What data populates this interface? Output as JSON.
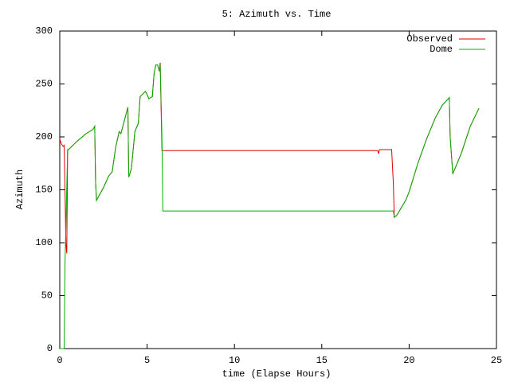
{
  "chart_data": {
    "type": "line",
    "title": "5: Azimuth vs. Time",
    "x_label": "time (Elapse Hours)",
    "y_label": "Azimuth",
    "xlim": [
      0,
      25
    ],
    "ylim": [
      0,
      300
    ],
    "xticks": [
      0,
      5,
      10,
      15,
      20,
      25
    ],
    "yticks": [
      0,
      50,
      100,
      150,
      200,
      250,
      300
    ],
    "legend": "top-right",
    "series": [
      {
        "name": "Observed",
        "color": "#e00000",
        "x": [
          0,
          0.1,
          0.2,
          0.25,
          0.3,
          0.35,
          0.4,
          0.45,
          0.5,
          1.0,
          1.5,
          1.9,
          2.0,
          2.05,
          2.1,
          2.5,
          2.8,
          3.0,
          3.2,
          3.4,
          3.5,
          3.9,
          3.95,
          4.1,
          4.3,
          4.5,
          4.6,
          4.9,
          5.0,
          5.1,
          5.3,
          5.4,
          5.5,
          5.6,
          5.7,
          5.75,
          5.85,
          18.2,
          18.25,
          18.3,
          19.0,
          19.1,
          19.15,
          19.3,
          19.8,
          20.0,
          20.5,
          21.0,
          21.5,
          21.9,
          22.3,
          22.35,
          22.5,
          23.0,
          23.5,
          24.0
        ],
        "values": [
          198,
          193,
          191,
          192,
          150,
          100,
          90,
          188,
          188,
          196,
          203,
          207,
          210,
          158,
          140,
          152,
          163,
          167,
          190,
          205,
          203,
          228,
          162,
          170,
          205,
          213,
          238,
          243,
          240,
          236,
          238,
          260,
          268,
          268,
          262,
          270,
          187,
          187,
          184,
          188,
          188,
          155,
          124,
          126,
          140,
          148,
          175,
          198,
          218,
          230,
          237,
          200,
          165,
          185,
          210,
          227
        ]
      },
      {
        "name": "Dome",
        "color": "#00b000",
        "x": [
          0,
          0.25,
          0.3,
          0.35,
          0.45,
          0.5,
          1.0,
          1.5,
          1.9,
          2.0,
          2.05,
          2.1,
          2.5,
          2.8,
          3.0,
          3.2,
          3.4,
          3.5,
          3.9,
          3.95,
          4.1,
          4.3,
          4.5,
          4.6,
          4.9,
          5.0,
          5.1,
          5.3,
          5.4,
          5.5,
          5.6,
          5.7,
          5.75,
          5.85,
          5.9,
          19.1,
          19.15,
          19.3,
          19.8,
          20.0,
          20.5,
          21.0,
          21.5,
          21.9,
          22.3,
          22.35,
          22.5,
          23.0,
          23.5,
          24.0
        ],
        "values": [
          0,
          0,
          80,
          115,
          187,
          188,
          196,
          203,
          207,
          210,
          158,
          140,
          152,
          163,
          167,
          190,
          205,
          203,
          228,
          162,
          170,
          205,
          213,
          238,
          243,
          240,
          236,
          238,
          260,
          268,
          268,
          262,
          268,
          200,
          130,
          130,
          124,
          126,
          140,
          148,
          175,
          198,
          218,
          230,
          237,
          200,
          165,
          185,
          210,
          227
        ]
      }
    ]
  }
}
